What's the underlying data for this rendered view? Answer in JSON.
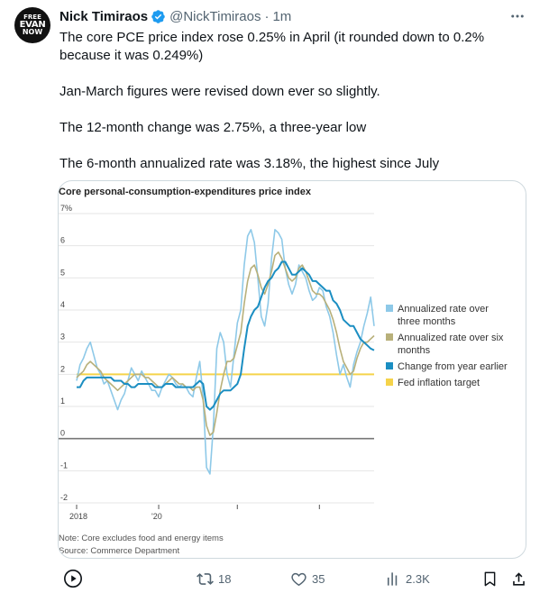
{
  "avatar": {
    "line1": "FREE",
    "line2": "EVAN",
    "line3": "NOW"
  },
  "tweet": {
    "name": "Nick Timiraos",
    "handle": "@NickTimiraos",
    "separator": "·",
    "time": "1m",
    "paragraphs": [
      "The core PCE price index rose 0.25% in April (it rounded down to 0.2% because it was 0.249%)",
      "Jan-March figures were revised down ever so slightly.",
      "The 12-month change was 2.75%, a three-year low",
      "The 6-month annualized rate was 3.18%, the highest since July"
    ]
  },
  "card": {
    "note": "Note: Core excludes food and energy items",
    "source": "Source: Commerce Department"
  },
  "actions": {
    "retweets": "18",
    "likes": "35",
    "views": "2.3K"
  },
  "colors": {
    "three_month": "#8ec9e8",
    "six_month": "#b8b07a",
    "yoy": "#1b8ec2",
    "target": "#f5d34a",
    "zero": "#777777"
  },
  "chart_data": {
    "type": "line",
    "title": "Core personal-consumption-expenditures price index",
    "y_tick_labels": [
      "7%",
      "6",
      "5",
      "4",
      "3",
      "2",
      "1",
      "0",
      "-1",
      "-2"
    ],
    "x_tick_labels": [
      "2018",
      "'20"
    ],
    "ylim": [
      -2,
      7
    ],
    "grid": true,
    "legend_position": "right",
    "series": [
      {
        "name": "Annualized rate over three months",
        "values": [
          1.8,
          2.3,
          2.5,
          2.8,
          3.0,
          2.6,
          2.2,
          2.0,
          1.7,
          1.8,
          1.5,
          1.2,
          0.9,
          1.2,
          1.4,
          1.8,
          2.2,
          2.0,
          1.8,
          2.1,
          1.9,
          1.7,
          1.5,
          1.5,
          1.3,
          1.6,
          1.8,
          2.0,
          1.9,
          1.7,
          1.6,
          1.7,
          1.6,
          1.4,
          1.3,
          1.9,
          2.4,
          1.3,
          -0.9,
          -1.1,
          0.4,
          2.8,
          3.3,
          3.0,
          2.0,
          1.6,
          2.6,
          3.6,
          4.0,
          5.4,
          6.3,
          6.5,
          6.1,
          5.0,
          3.8,
          3.5,
          4.2,
          5.6,
          6.5,
          6.4,
          6.2,
          5.3,
          4.8,
          4.5,
          4.8,
          5.4,
          5.2,
          5.0,
          4.6,
          4.3,
          4.4,
          4.7,
          4.6,
          4.1,
          3.8,
          3.3,
          2.6,
          2.0,
          2.3,
          1.9,
          1.6,
          2.3,
          2.7,
          3.0,
          3.5,
          3.9,
          4.4,
          3.5
        ]
      },
      {
        "name": "Annualized rate over six months",
        "values": [
          1.9,
          2.0,
          2.1,
          2.3,
          2.4,
          2.3,
          2.2,
          2.1,
          1.9,
          1.8,
          1.7,
          1.6,
          1.5,
          1.6,
          1.7,
          1.8,
          1.9,
          2.0,
          2.0,
          2.0,
          1.9,
          1.9,
          1.8,
          1.7,
          1.6,
          1.6,
          1.7,
          1.8,
          1.9,
          1.8,
          1.7,
          1.7,
          1.6,
          1.6,
          1.5,
          1.6,
          1.6,
          1.2,
          0.4,
          0.1,
          0.2,
          0.8,
          1.5,
          2.0,
          2.4,
          2.4,
          2.5,
          2.9,
          3.3,
          4.2,
          4.9,
          5.3,
          5.4,
          5.1,
          4.7,
          4.5,
          4.8,
          5.2,
          5.7,
          5.8,
          5.6,
          5.3,
          5.0,
          4.9,
          5.0,
          5.3,
          5.4,
          5.2,
          4.9,
          4.6,
          4.5,
          4.5,
          4.4,
          4.2,
          4.0,
          3.7,
          3.3,
          2.8,
          2.4,
          2.2,
          2.0,
          2.1,
          2.5,
          2.8,
          3.0,
          3.0,
          3.1,
          3.2
        ]
      },
      {
        "name": "Change from year earlier",
        "values": [
          1.6,
          1.6,
          1.8,
          1.9,
          1.9,
          1.9,
          1.9,
          1.9,
          1.9,
          1.9,
          1.9,
          1.8,
          1.8,
          1.8,
          1.7,
          1.7,
          1.6,
          1.6,
          1.7,
          1.7,
          1.7,
          1.7,
          1.7,
          1.6,
          1.6,
          1.6,
          1.7,
          1.7,
          1.7,
          1.6,
          1.6,
          1.6,
          1.6,
          1.6,
          1.6,
          1.7,
          1.8,
          1.7,
          1.0,
          0.9,
          1.0,
          1.2,
          1.4,
          1.5,
          1.5,
          1.5,
          1.6,
          1.7,
          2.0,
          2.8,
          3.5,
          3.8,
          4.0,
          4.1,
          4.4,
          4.7,
          4.9,
          5.0,
          5.2,
          5.3,
          5.5,
          5.5,
          5.3,
          5.1,
          5.1,
          5.2,
          5.3,
          5.2,
          5.1,
          4.9,
          4.9,
          4.8,
          4.7,
          4.6,
          4.6,
          4.3,
          4.2,
          4.0,
          3.7,
          3.6,
          3.5,
          3.5,
          3.3,
          3.1,
          3.0,
          2.9,
          2.8,
          2.75
        ]
      },
      {
        "name": "Fed inflation target",
        "values": [
          2.0
        ]
      }
    ]
  }
}
